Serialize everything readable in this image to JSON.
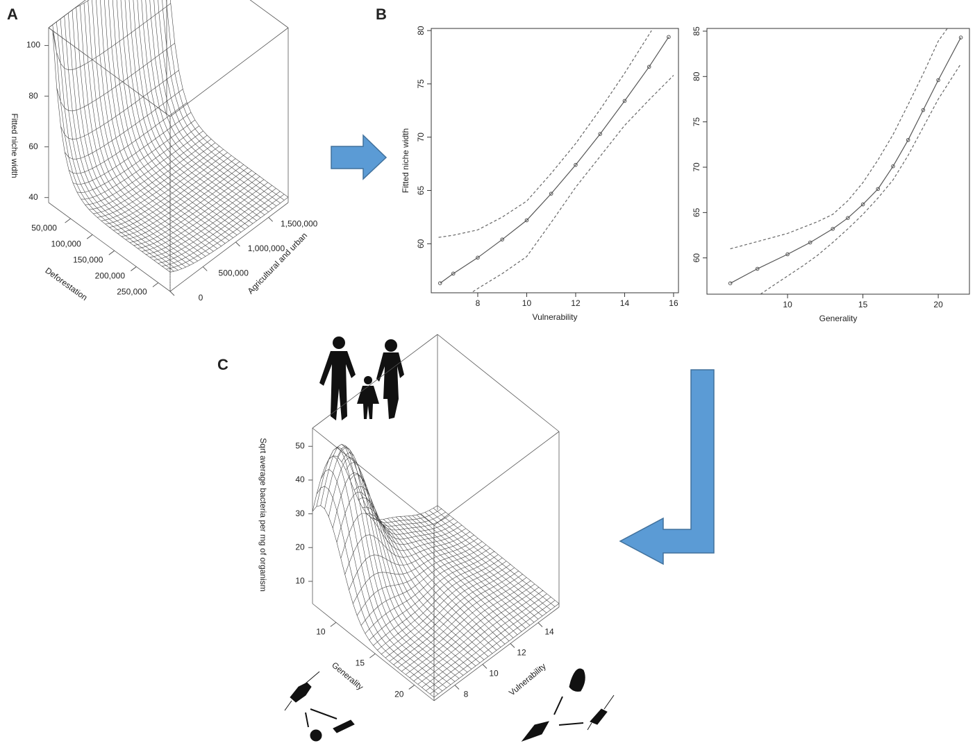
{
  "panel_labels": [
    "A",
    "B",
    "C"
  ],
  "chart_data": [
    {
      "type": "surface3d",
      "zlabel": "Fitted niche width",
      "xlabel": "Deforestation",
      "ylabel": "Agricultural and urban",
      "xlim": [
        0,
        277000
      ],
      "xticks": [
        {
          "value": 50000,
          "label": "50,000"
        },
        {
          "value": 100000,
          "label": "100,000"
        },
        {
          "value": 150000,
          "label": "150,000"
        },
        {
          "value": 200000,
          "label": "200,000"
        },
        {
          "value": 250000,
          "label": "250,000"
        }
      ],
      "ylim": [
        0,
        1800000
      ],
      "yticks": [
        0,
        {
          "value": 500000,
          "label": "500,000"
        },
        {
          "value": 1000000,
          "label": "1,000,000"
        },
        {
          "value": 1500000,
          "label": "1,500,000"
        }
      ],
      "zlim": [
        38,
        107
      ],
      "zticks": [
        40,
        60,
        80,
        100
      ]
    },
    {
      "type": "line",
      "xlabel": "Vulnerability",
      "ylabel": "Fitted niche width",
      "xlim": [
        6.1,
        16.2
      ],
      "xticks": [
        8,
        10,
        12,
        14,
        16
      ],
      "ylim": [
        55.4,
        80.2
      ],
      "yticks": [
        60,
        65,
        70,
        75,
        80
      ],
      "series": [
        {
          "color": "#555555",
          "style": "solid",
          "markers": true,
          "x": [
            6.46,
            7,
            8,
            9,
            10,
            11,
            12,
            13,
            14,
            15,
            15.8
          ],
          "values": [
            56.3,
            57.2,
            58.7,
            60.4,
            62.2,
            64.7,
            67.4,
            70.3,
            73.4,
            76.6,
            79.4
          ]
        },
        {
          "color": "#666666",
          "style": "dashed",
          "x": [
            6.4,
            7,
            8,
            9,
            10,
            11,
            12,
            13,
            14,
            15.1
          ],
          "values": [
            60.6,
            60.8,
            61.3,
            62.5,
            64,
            66.6,
            69.4,
            72.6,
            76,
            80
          ]
        },
        {
          "color": "#666666",
          "style": "dashed",
          "x": [
            7.8,
            8,
            9,
            10,
            11,
            12,
            13,
            14,
            15,
            16
          ],
          "values": [
            55.5,
            55.8,
            57.2,
            58.8,
            62,
            65.3,
            68.2,
            71.1,
            73.5,
            75.8
          ]
        }
      ]
    },
    {
      "type": "line",
      "xlabel": "Generality",
      "xlim": [
        4.65,
        22.07
      ],
      "xticks": [
        10,
        15,
        20
      ],
      "ylim": [
        56,
        85.3
      ],
      "yticks": [
        60,
        65,
        70,
        75,
        80,
        85
      ],
      "series": [
        {
          "color": "#555555",
          "style": "solid",
          "markers": true,
          "x": [
            6.2,
            8,
            10,
            11.5,
            13,
            14,
            15,
            16,
            17,
            18,
            19,
            20,
            21.5
          ],
          "values": [
            57.2,
            58.8,
            60.4,
            61.7,
            63.2,
            64.4,
            65.9,
            67.6,
            70.1,
            73,
            76.3,
            79.6,
            84.3
          ]
        },
        {
          "color": "#666666",
          "style": "dashed",
          "x": [
            6.2,
            8,
            10,
            12,
            13,
            14,
            15,
            16,
            17,
            18,
            19,
            20,
            20.6
          ],
          "values": [
            61,
            61.8,
            62.7,
            64,
            64.8,
            66.3,
            68.3,
            70.8,
            73.6,
            76.9,
            80.3,
            83.9,
            85.3
          ]
        },
        {
          "color": "#666666",
          "style": "dashed",
          "x": [
            8.2,
            9,
            10,
            11,
            12,
            13,
            14,
            15,
            16,
            17,
            18,
            19,
            20,
            21.5
          ],
          "values": [
            56,
            56.9,
            58,
            59.1,
            60.3,
            61.7,
            63.2,
            64.8,
            66.6,
            68.6,
            71.3,
            74.4,
            77.5,
            81.4
          ]
        }
      ]
    },
    {
      "type": "surface3d",
      "zlabel": "Sqrt average bacteria per mg of organism",
      "xlabel": "Generality",
      "ylabel": "Vulnerability",
      "xlim": [
        7,
        22.5
      ],
      "xticks": [
        10,
        15,
        20
      ],
      "ylim": [
        6.5,
        15.5
      ],
      "yticks": [
        8,
        10,
        12,
        14
      ],
      "zlim": [
        3.4,
        55.4
      ],
      "zticks": [
        10,
        20,
        30,
        40,
        50
      ]
    }
  ]
}
